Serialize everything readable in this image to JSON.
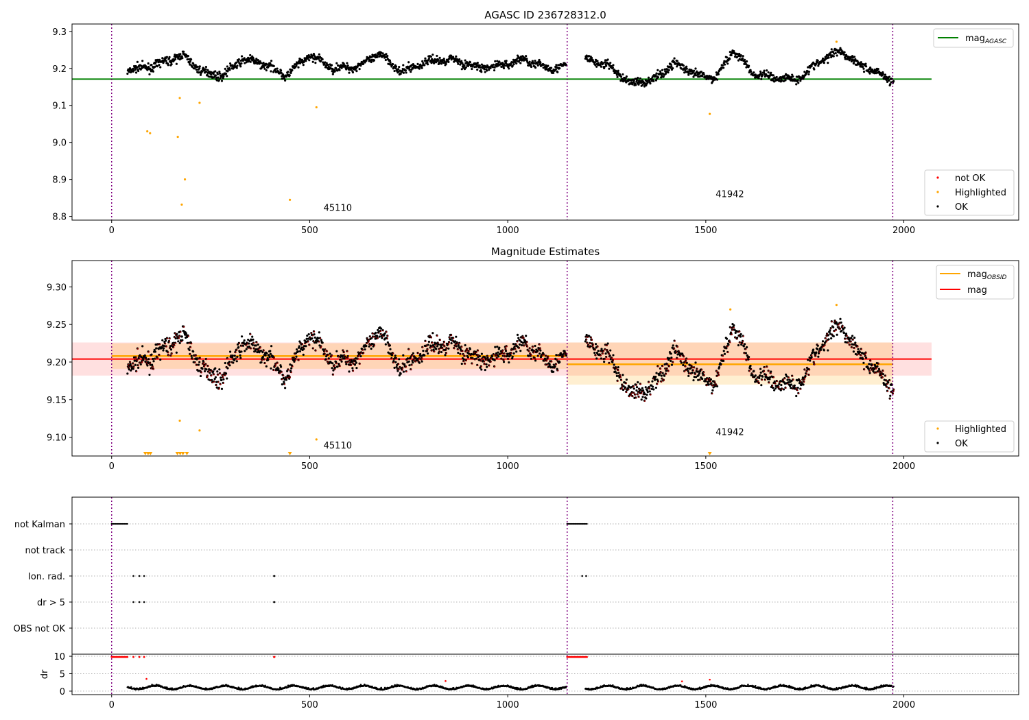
{
  "chart_data": [
    {
      "type": "scatter",
      "title": "AGASC ID 236728312.0",
      "xlim": [
        -100,
        2290
      ],
      "ylim": [
        8.79,
        9.32
      ],
      "xticks": [
        0,
        500,
        1000,
        1500,
        2000
      ],
      "yticks": [
        8.8,
        8.9,
        9.0,
        9.1,
        9.2,
        9.3
      ],
      "ytick_labels": [
        "8.8",
        "8.9",
        "9.0",
        "9.1",
        "9.2",
        "9.3"
      ],
      "obsid_boundaries": [
        0,
        1150,
        1972
      ],
      "obsid_labels": [
        {
          "text": "45110",
          "x": 535,
          "y": 8.815
        },
        {
          "text": "41942",
          "x": 1525,
          "y": 8.852
        }
      ],
      "mag_agasc": {
        "value": 9.171,
        "x": [
          -100,
          2070
        ],
        "color": "#008000"
      },
      "legend_lines": [
        {
          "label": "mag",
          "sub": "AGASC",
          "color": "#008000"
        }
      ],
      "legend_points": [
        {
          "label": "not OK",
          "color": "#ff0000"
        },
        {
          "label": "Highlighted",
          "color": "#ffa500"
        },
        {
          "label": "OK",
          "color": "#000000"
        }
      ],
      "highlighted": [
        [
          90,
          9.03
        ],
        [
          97,
          9.025
        ],
        [
          167,
          9.015
        ],
        [
          172,
          9.12
        ],
        [
          177,
          8.832
        ],
        [
          185,
          8.9
        ],
        [
          222,
          9.107
        ],
        [
          450,
          8.845
        ],
        [
          517,
          9.095
        ],
        [
          1510,
          9.077
        ],
        [
          1830,
          9.272
        ]
      ],
      "ok_trend": [
        [
          40,
          9.195
        ],
        [
          100,
          9.205
        ],
        [
          180,
          9.235
        ],
        [
          230,
          9.19
        ],
        [
          280,
          9.18
        ],
        [
          330,
          9.225
        ],
        [
          390,
          9.21
        ],
        [
          440,
          9.18
        ],
        [
          500,
          9.235
        ],
        [
          560,
          9.2
        ],
        [
          620,
          9.205
        ],
        [
          680,
          9.24
        ],
        [
          730,
          9.19
        ],
        [
          800,
          9.22
        ],
        [
          860,
          9.225
        ],
        [
          930,
          9.2
        ],
        [
          990,
          9.21
        ],
        [
          1040,
          9.225
        ],
        [
          1100,
          9.2
        ],
        [
          1145,
          9.205
        ],
        [
          1195,
          9.225
        ],
        [
          1250,
          9.21
        ],
        [
          1310,
          9.16
        ],
        [
          1370,
          9.17
        ],
        [
          1420,
          9.215
        ],
        [
          1480,
          9.18
        ],
        [
          1525,
          9.175
        ],
        [
          1570,
          9.25
        ],
        [
          1620,
          9.185
        ],
        [
          1680,
          9.175
        ],
        [
          1730,
          9.17
        ],
        [
          1790,
          9.22
        ],
        [
          1840,
          9.25
        ],
        [
          1880,
          9.215
        ],
        [
          1930,
          9.19
        ],
        [
          1975,
          9.165
        ]
      ]
    },
    {
      "type": "scatter",
      "title": "Magnitude Estimates",
      "xlim": [
        -100,
        2290
      ],
      "ylim": [
        9.075,
        9.335
      ],
      "xticks": [
        0,
        500,
        1000,
        1500,
        2000
      ],
      "yticks": [
        9.1,
        9.15,
        9.2,
        9.25,
        9.3
      ],
      "ytick_labels": [
        "9.10",
        "9.15",
        "9.20",
        "9.25",
        "9.30"
      ],
      "obsid_boundaries": [
        0,
        1150,
        1972
      ],
      "obsid_labels": [
        {
          "text": "45110",
          "x": 535,
          "y": 9.085
        },
        {
          "text": "41942",
          "x": 1525,
          "y": 9.103
        }
      ],
      "mag": {
        "value": 9.204,
        "lo": 9.182,
        "hi": 9.226,
        "x": [
          -100,
          2070
        ],
        "color": "#ff0000"
      },
      "mag_obsid": [
        {
          "value": 9.208,
          "lo": 9.191,
          "hi": 9.225,
          "x": [
            0,
            1150
          ]
        },
        {
          "value": 9.197,
          "lo": 9.17,
          "hi": 9.226,
          "x": [
            1150,
            1972
          ]
        }
      ],
      "legend_lines": [
        {
          "label": "mag",
          "sub": "OBSID",
          "color": "#ffa500"
        },
        {
          "label": "mag",
          "sub": "",
          "color": "#ff0000"
        }
      ],
      "legend_points": [
        {
          "label": "Highlighted",
          "color": "#ffa500"
        },
        {
          "label": "OK",
          "color": "#000000"
        }
      ],
      "highlighted": [
        [
          172,
          9.122
        ],
        [
          222,
          9.109
        ],
        [
          517,
          9.097
        ],
        [
          1562,
          9.27
        ],
        [
          1830,
          9.276
        ]
      ],
      "lower_limit_markers": [
        85,
        92,
        98,
        166,
        173,
        180,
        190,
        450,
        1510
      ]
    },
    {
      "type": "scatter",
      "title": "",
      "xlim": [
        -100,
        2290
      ],
      "xticks": [
        0,
        500,
        1000,
        1500,
        2000
      ],
      "obsid_boundaries": [
        0,
        1150,
        1972
      ],
      "flag_rows": [
        "not Kalman",
        "not track",
        "Ion. rad.",
        "dr > 5",
        "OBS not OK"
      ],
      "flags": {
        "not Kalman": [
          [
            0,
            40
          ],
          [
            1150,
            1200
          ]
        ],
        "Ion. rad.": [
          [
            55
          ],
          [
            70
          ],
          [
            82
          ],
          [
            410
          ],
          [
            411
          ],
          [
            1188
          ],
          [
            1198
          ]
        ],
        "dr > 5": [
          [
            55
          ],
          [
            70
          ],
          [
            82
          ],
          [
            410
          ],
          [
            411
          ]
        ]
      },
      "dr_panel": {
        "ylabel": "dr",
        "yticks": [
          0,
          5,
          10
        ],
        "ytick_labels": [
          "0",
          "5",
          "10"
        ],
        "ylim": [
          -1,
          10.6
        ],
        "clipped_at_10": [
          [
            0,
            40
          ],
          [
            55
          ],
          [
            70
          ],
          [
            82
          ],
          [
            410
          ],
          [
            411
          ],
          [
            1150,
            1200
          ]
        ],
        "red_outliers": [
          [
            88,
            3.5
          ],
          [
            843,
            2.9
          ],
          [
            1510,
            3.3
          ],
          [
            1440,
            2.8
          ]
        ]
      }
    }
  ]
}
